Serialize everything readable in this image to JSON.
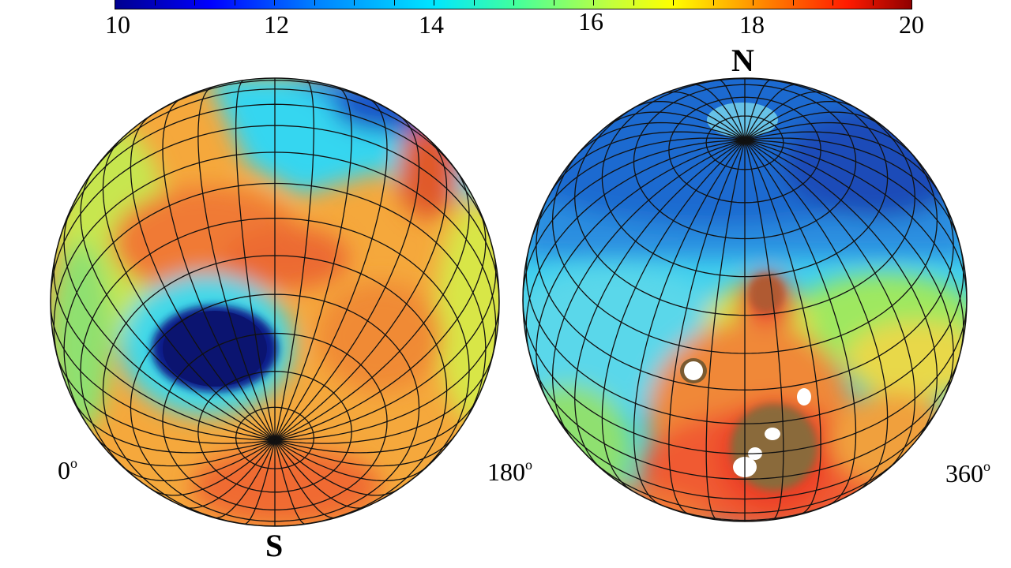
{
  "colorbar": {
    "ticks": [
      "10",
      "12",
      "14",
      "16",
      "18",
      "20"
    ],
    "min": 10,
    "max": 20,
    "colors": [
      "#00008f",
      "#0000ff",
      "#0080ff",
      "#00e6ff",
      "#40ff9f",
      "#c0ff3f",
      "#ffff00",
      "#ff8000",
      "#ff1a00",
      "#8f0000"
    ]
  },
  "left_globe": {
    "pole_label": "S",
    "lon_start": "0",
    "lon_end": "180",
    "degree_symbol": "o"
  },
  "right_globe": {
    "pole_label": "N",
    "lon_end": "360",
    "degree_symbol": "o"
  }
}
